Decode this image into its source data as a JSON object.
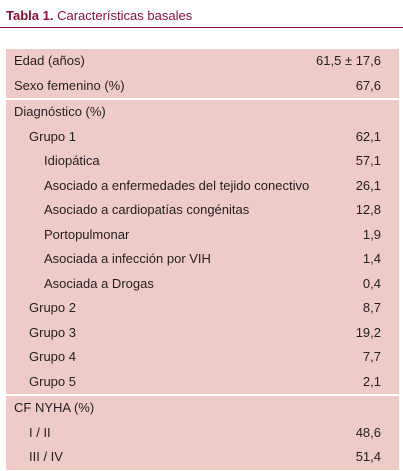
{
  "caption": {
    "label": "Tabla 1.",
    "title": "Características basales"
  },
  "sections": [
    {
      "rows": [
        {
          "label": "Edad (años)",
          "value": "61,5 ± 17,6"
        },
        {
          "label": "Sexo femenino (%)",
          "value": "67,6"
        }
      ]
    },
    {
      "rows": [
        {
          "label": "Diagnóstico (%)",
          "value": ""
        },
        {
          "label": "Grupo 1",
          "value": "62,1"
        },
        {
          "label": "Idiopática",
          "value": "57,1"
        },
        {
          "label": "Asociado a enfermedades del tejido conectivo",
          "value": "26,1"
        },
        {
          "label": "Asociado a cardiopatías congénitas",
          "value": "12,8"
        },
        {
          "label": "Portopulmonar",
          "value": "1,9"
        },
        {
          "label": "Asociada a infección por VIH",
          "value": "1,4"
        },
        {
          "label": "Asociada a Drogas",
          "value": "0,4"
        },
        {
          "label": "Grupo 2",
          "value": "8,7"
        },
        {
          "label": "Grupo 3",
          "value": "19,2"
        },
        {
          "label": "Grupo 4",
          "value": "7,7"
        },
        {
          "label": "Grupo 5",
          "value": "2,1"
        }
      ]
    },
    {
      "rows": [
        {
          "label": "CF NYHA (%)",
          "value": ""
        },
        {
          "label": "I / II",
          "value": "48,6"
        },
        {
          "label": "III / IV",
          "value": "51,4"
        }
      ]
    }
  ]
}
